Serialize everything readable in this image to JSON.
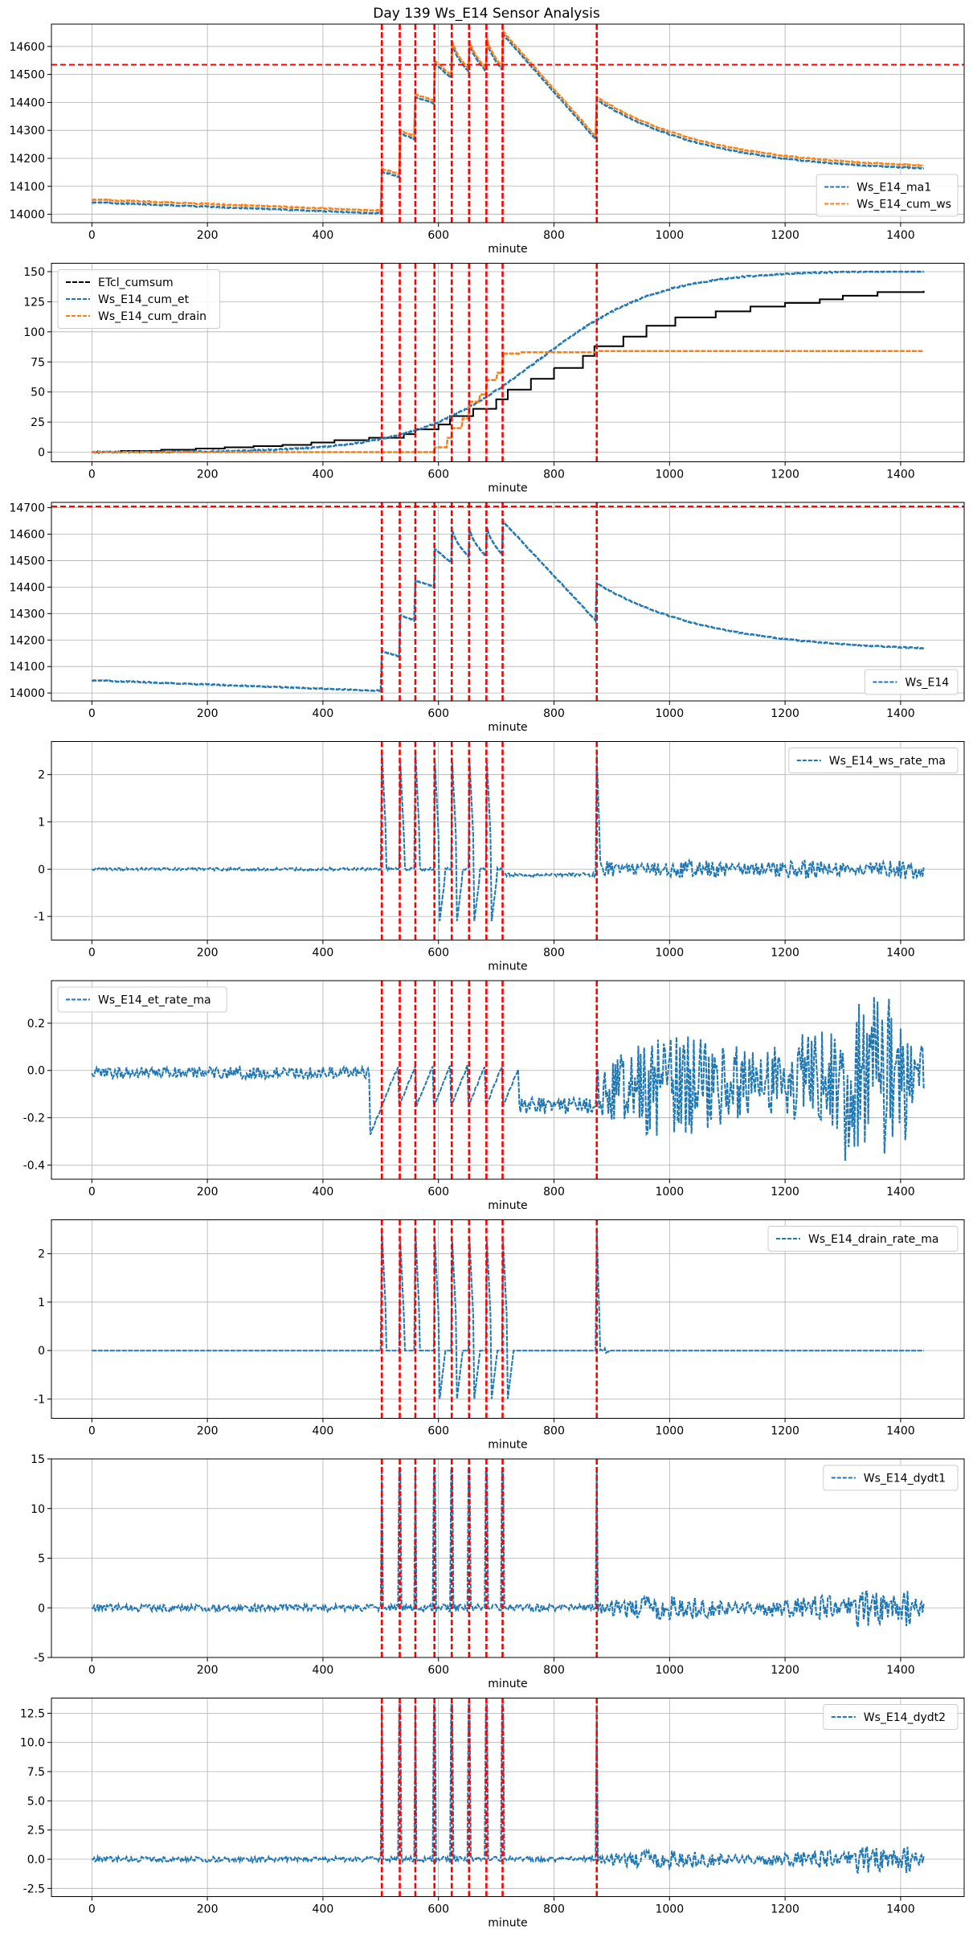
{
  "figure_title": "Day 139 Ws_E14 Sensor Analysis",
  "colors": {
    "blue": "#1f77b4",
    "orange": "#ff7f0e",
    "black": "#000000",
    "red": "#ff0000",
    "grid": "#b0b0b0"
  },
  "event_markers": [
    502,
    533,
    560,
    593,
    623,
    653,
    683,
    711,
    874
  ],
  "chart_data": [
    {
      "type": "line",
      "xlabel": "minute",
      "xlim": [
        -70,
        1510
      ],
      "ylim": [
        13970,
        14680
      ],
      "xticks": [
        0,
        200,
        400,
        600,
        800,
        1000,
        1200,
        1400
      ],
      "yticks": [
        14000,
        14100,
        14200,
        14300,
        14400,
        14500,
        14600
      ],
      "grid": true,
      "legend_loc": "lower-right",
      "hlines": [
        14535
      ],
      "series": [
        {
          "name": "Ws_E14_ma1",
          "color": "blue",
          "style": "dashed",
          "width": 2.5,
          "gen": "ws",
          "offset": -5,
          "legend": true
        },
        {
          "name": "Ws_E14_cum_ws",
          "color": "orange",
          "style": "dashed",
          "width": 2.5,
          "gen": "ws",
          "offset": 5,
          "legend": true
        }
      ]
    },
    {
      "type": "line",
      "xlabel": "minute",
      "xlim": [
        -70,
        1510
      ],
      "ylim": [
        -8,
        157
      ],
      "xticks": [
        0,
        200,
        400,
        600,
        800,
        1000,
        1200,
        1400
      ],
      "yticks": [
        0,
        25,
        50,
        75,
        100,
        125,
        150
      ],
      "grid": true,
      "legend_loc": "upper-left",
      "hlines": [],
      "series": [
        {
          "name": "ETcl_cumsum",
          "color": "black",
          "style": "dashed",
          "width": 2,
          "gen": "etcl",
          "legend": true
        },
        {
          "name": "Ws_E14_cum_et",
          "color": "blue",
          "style": "dashed",
          "width": 2.5,
          "gen": "cumet",
          "legend": true
        },
        {
          "name": "Ws_E14_cum_drain",
          "color": "orange",
          "style": "dashed",
          "width": 2.5,
          "gen": "cumdrain",
          "legend": true
        }
      ]
    },
    {
      "type": "line",
      "xlabel": "minute",
      "xlim": [
        -70,
        1510
      ],
      "ylim": [
        13970,
        14720
      ],
      "xticks": [
        0,
        200,
        400,
        600,
        800,
        1000,
        1200,
        1400
      ],
      "yticks": [
        14000,
        14100,
        14200,
        14300,
        14400,
        14500,
        14600,
        14700
      ],
      "grid": true,
      "legend_loc": "lower-right",
      "hlines": [
        14705
      ],
      "series": [
        {
          "name": "Ws_E14",
          "color": "blue",
          "style": "dashed",
          "width": 2.5,
          "gen": "ws",
          "offset": 0,
          "legend": true
        }
      ]
    },
    {
      "type": "line",
      "xlabel": "minute",
      "xlim": [
        -70,
        1510
      ],
      "ylim": [
        -1.5,
        2.7
      ],
      "xticks": [
        0,
        200,
        400,
        600,
        800,
        1000,
        1200,
        1400
      ],
      "yticks": [
        -1,
        0,
        1,
        2
      ],
      "grid": true,
      "legend_loc": "upper-right",
      "hlines": [],
      "series": [
        {
          "name": "Ws_E14_ws_rate_ma",
          "color": "blue",
          "style": "dashed",
          "width": 2,
          "gen": "wsrate",
          "legend": true
        }
      ]
    },
    {
      "type": "line",
      "xlabel": "minute",
      "xlim": [
        -70,
        1510
      ],
      "ylim": [
        -0.46,
        0.38
      ],
      "xticks": [
        0,
        200,
        400,
        600,
        800,
        1000,
        1200,
        1400
      ],
      "yticks": [
        -0.4,
        -0.2,
        0.0,
        0.2
      ],
      "ytick_labels": [
        "-0.4",
        "-0.2",
        "0.0",
        "0.2"
      ],
      "grid": true,
      "legend_loc": "upper-left",
      "hlines": [],
      "series": [
        {
          "name": "Ws_E14_et_rate_ma",
          "color": "blue",
          "style": "dashed",
          "width": 2,
          "gen": "etrate",
          "legend": true
        }
      ]
    },
    {
      "type": "line",
      "xlabel": "minute",
      "xlim": [
        -70,
        1510
      ],
      "ylim": [
        -1.4,
        2.7
      ],
      "xticks": [
        0,
        200,
        400,
        600,
        800,
        1000,
        1200,
        1400
      ],
      "yticks": [
        -1,
        0,
        1,
        2
      ],
      "grid": true,
      "legend_loc": "upper-right",
      "hlines": [],
      "series": [
        {
          "name": "Ws_E14_drain_rate_ma",
          "color": "blue",
          "style": "dashed",
          "width": 2,
          "gen": "drainrate",
          "legend": true
        }
      ]
    },
    {
      "type": "line",
      "xlabel": "minute",
      "xlim": [
        -70,
        1510
      ],
      "ylim": [
        -5,
        15
      ],
      "xticks": [
        0,
        200,
        400,
        600,
        800,
        1000,
        1200,
        1400
      ],
      "yticks": [
        -5,
        0,
        5,
        10,
        15
      ],
      "grid": true,
      "legend_loc": "upper-right",
      "hlines": [],
      "series": [
        {
          "name": "Ws_E14_dydt1",
          "color": "blue",
          "style": "dashed",
          "width": 2,
          "gen": "dydt1",
          "legend": true
        }
      ]
    },
    {
      "type": "line",
      "xlabel": "minute",
      "xlim": [
        -70,
        1510
      ],
      "ylim": [
        -3.2,
        13.8
      ],
      "xticks": [
        0,
        200,
        400,
        600,
        800,
        1000,
        1200,
        1400
      ],
      "yticks": [
        -2.5,
        0.0,
        2.5,
        5.0,
        7.5,
        10.0,
        12.5
      ],
      "ytick_labels": [
        "-2.5",
        "0.0",
        "2.5",
        "5.0",
        "7.5",
        "10.0",
        "12.5"
      ],
      "grid": true,
      "legend_loc": "upper-right",
      "hlines": [],
      "series": [
        {
          "name": "Ws_E14_dydt2",
          "color": "blue",
          "style": "dashed",
          "width": 2,
          "gen": "dydt2",
          "legend": true
        }
      ]
    }
  ]
}
